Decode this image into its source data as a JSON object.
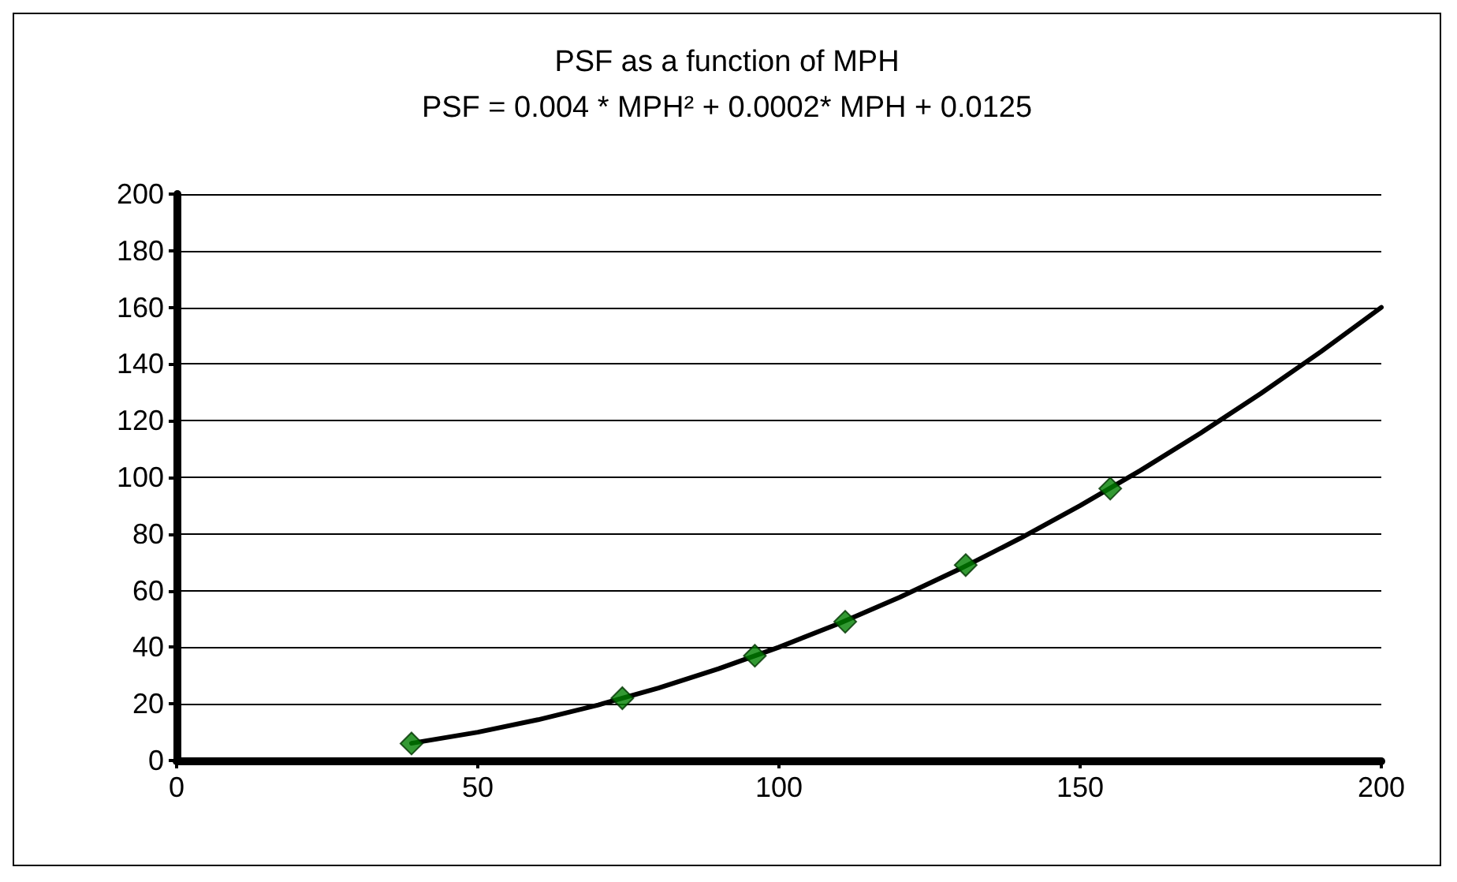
{
  "chart_data": {
    "type": "scatter",
    "title": "PSF as a function of MPH",
    "subtitle": "PSF = 0.004 * MPH² + 0.0002* MPH + 0.0125",
    "series": [
      {
        "type": "scatter",
        "color": "#008000",
        "marker": "diamond",
        "x": [
          39,
          74,
          96,
          111,
          131,
          155
        ],
        "values": [
          6,
          22,
          37,
          49,
          69,
          96
        ]
      },
      {
        "type": "line",
        "color": "#000000",
        "marker": "none",
        "line_style": "solid",
        "x": [
          39,
          50,
          60,
          70,
          80,
          90,
          100,
          110,
          120,
          130,
          140,
          150,
          160,
          170,
          180,
          190,
          200
        ],
        "values": [
          6.1,
          10,
          14.4,
          19.6,
          25.6,
          32.4,
          40,
          48.4,
          57.6,
          67.6,
          78.4,
          90,
          102.4,
          115.6,
          129.6,
          144.4,
          160
        ]
      }
    ],
    "xlim": [
      0,
      200
    ],
    "xticks": [
      0,
      50,
      100,
      150,
      200
    ],
    "ylim": [
      0,
      200
    ],
    "yticks": [
      0,
      20,
      40,
      60,
      80,
      100,
      120,
      140,
      160,
      180,
      200
    ],
    "grid": "y"
  }
}
